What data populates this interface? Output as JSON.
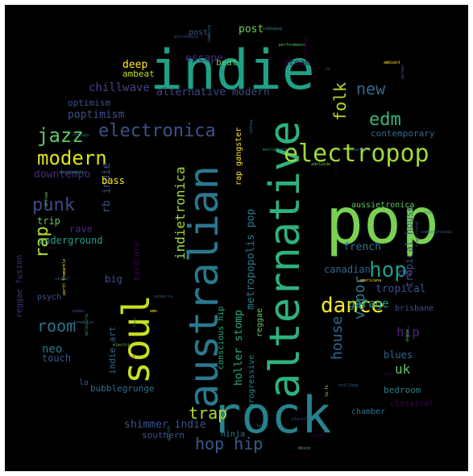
{
  "words": [
    {
      "text": "pop",
      "size": "xl",
      "color": "#7ad151"
    },
    {
      "text": "indie",
      "size": "xl",
      "color": "#1fa187"
    },
    {
      "text": "rock",
      "size": "xl",
      "color": "#26828e"
    },
    {
      "text": "alternative",
      "size": "l",
      "color": "#2db27d"
    },
    {
      "text": "australian",
      "size": "l",
      "color": "#2a788e"
    },
    {
      "text": "soul",
      "size": "l",
      "color": "#c8e020"
    },
    {
      "text": "electropop",
      "size": "m",
      "color": "#a0da39"
    },
    {
      "text": "dance",
      "size": "m",
      "color": "#fde725"
    },
    {
      "text": "electronica",
      "size": "m",
      "color": "#3b528b"
    },
    {
      "text": "jazz",
      "size": "m",
      "color": "#5ec962"
    },
    {
      "text": "modern",
      "size": "m",
      "color": "#dde318"
    },
    {
      "text": "hop",
      "size": "m",
      "color": "#1f988b"
    },
    {
      "text": "rap",
      "size": "m",
      "color": "#b5de2b"
    },
    {
      "text": "punk",
      "size": "m",
      "color": "#3e4989"
    },
    {
      "text": "room",
      "size": "m",
      "color": "#2c728e"
    },
    {
      "text": "new",
      "size": "m",
      "color": "#31688e"
    },
    {
      "text": "edm",
      "size": "m",
      "color": "#35b779"
    },
    {
      "text": "folk",
      "size": "m",
      "color": "#b5de2b"
    },
    {
      "text": "trap",
      "size": "m",
      "color": "#addc30"
    },
    {
      "text": "hop hip",
      "size": "m",
      "color": "#375a8c"
    },
    {
      "text": "house",
      "size": "m",
      "color": "#31688e"
    },
    {
      "text": "vapor",
      "size": "m",
      "color": "#2a788e"
    },
    {
      "text": "uk",
      "size": "s",
      "color": "#5ec962"
    },
    {
      "text": "hip",
      "size": "s",
      "color": "#482475"
    },
    {
      "text": "indietronica",
      "size": "s",
      "color": "#a5db36"
    },
    {
      "text": "metropopolis pop",
      "size": "s",
      "color": "#2a788e"
    },
    {
      "text": "shimmer indie",
      "size": "s",
      "color": "#3b528b"
    },
    {
      "text": "holler stomp",
      "size": "s",
      "color": "#29af7f"
    },
    {
      "text": "garage",
      "size": "s",
      "color": "#20a386"
    },
    {
      "text": "chillwave",
      "size": "s",
      "color": "#414487"
    },
    {
      "text": "alternative modern",
      "size": "s",
      "color": "#3e4a89"
    },
    {
      "text": "poptimism",
      "size": "s",
      "color": "#3b528b"
    },
    {
      "text": "downtempo",
      "size": "s",
      "color": "#482878"
    },
    {
      "text": "escape",
      "size": "s",
      "color": "#482878"
    },
    {
      "text": "deep",
      "size": "s",
      "color": "#fde725"
    },
    {
      "text": "post",
      "size": "s",
      "color": "#6ece58"
    },
    {
      "text": "beat",
      "size": "s",
      "color": "#5ec962"
    },
    {
      "text": "ambeat",
      "size": "s",
      "color": "#bddf26"
    },
    {
      "text": "dream",
      "size": "s",
      "color": "#440154"
    },
    {
      "text": "rb indie",
      "size": "s",
      "color": "#3b528b"
    },
    {
      "text": "bass",
      "size": "s",
      "color": "#fde725"
    },
    {
      "text": "trip",
      "size": "s",
      "color": "#5ec962"
    },
    {
      "text": "underground",
      "size": "s",
      "color": "#1fa187"
    },
    {
      "text": "rave",
      "size": "s",
      "color": "#482878"
    },
    {
      "text": "french",
      "size": "s",
      "color": "#2c728e"
    },
    {
      "text": "canadian",
      "size": "s",
      "color": "#31688e"
    },
    {
      "text": "nu",
      "size": "s",
      "color": "#46327e"
    },
    {
      "text": "tropical",
      "size": "s",
      "color": "#3b528b"
    },
    {
      "text": "tropical house",
      "size": "s",
      "color": "#3b528b"
    },
    {
      "text": "aussietronica",
      "size": "s",
      "color": "#5ec962"
    },
    {
      "text": "contemporary",
      "size": "s",
      "color": "#31688e"
    },
    {
      "text": "brisbane",
      "size": "s",
      "color": "#3b528b"
    },
    {
      "text": "blues",
      "size": "s",
      "color": "#31688e"
    },
    {
      "text": "bedroom",
      "size": "s",
      "color": "#287d8e"
    },
    {
      "text": "classical",
      "size": "s",
      "color": "#440154"
    },
    {
      "text": "chamber",
      "size": "s",
      "color": "#2c728e"
    },
    {
      "text": "neo",
      "size": "s",
      "color": "#2a788e"
    },
    {
      "text": "touch",
      "size": "s",
      "color": "#3b528b"
    },
    {
      "text": "indie art",
      "size": "s",
      "color": "#31688e"
    },
    {
      "text": "big",
      "size": "s",
      "color": "#3b528b"
    },
    {
      "text": "psych",
      "size": "s",
      "color": "#3b528b"
    },
    {
      "text": "bubblegrunge",
      "size": "s",
      "color": "#2c728e"
    },
    {
      "text": "conscious hip",
      "size": "s",
      "color": "#29af7f"
    },
    {
      "text": "progressive",
      "size": "s",
      "color": "#26828e"
    },
    {
      "text": "reggae",
      "size": "s",
      "color": "#5ec962"
    },
    {
      "text": "southern",
      "size": "s",
      "color": "#3b528b"
    },
    {
      "text": "ninja",
      "size": "s",
      "color": "#2a788e"
    },
    {
      "text": "la",
      "size": "s",
      "color": "#3b528b"
    },
    {
      "text": "reggae fusion",
      "size": "s",
      "color": "#46327e"
    },
    {
      "text": "rap gangster",
      "size": "s",
      "color": "#fde725"
    },
    {
      "text": "hardcore",
      "size": "s",
      "color": "#440154"
    },
    {
      "text": "optimism",
      "size": "s",
      "color": "#3b528b"
    },
    {
      "text": "post",
      "size": "s",
      "color": "#3b528b"
    }
  ],
  "tiny_words": [
    "microhouse",
    "hamburg",
    "indiepop",
    "performance",
    "brisbane",
    "nz",
    "ambient",
    "german",
    "chicago",
    "psychedelic",
    "anthem",
    "teen",
    "singer",
    "perth fremantle",
    "queen",
    "brooklyn",
    "melbourne",
    "electric",
    "soul",
    "funk",
    "emo",
    "canberra",
    "sydney",
    "metropopolis",
    "adelaide",
    "drill",
    "country",
    "americana",
    "traditional",
    "compositional",
    "funk",
    "skate",
    "surf",
    "chillhop",
    "lo-fi",
    "electro",
    "latin",
    "glitch",
    "disco",
    "gospel"
  ]
}
